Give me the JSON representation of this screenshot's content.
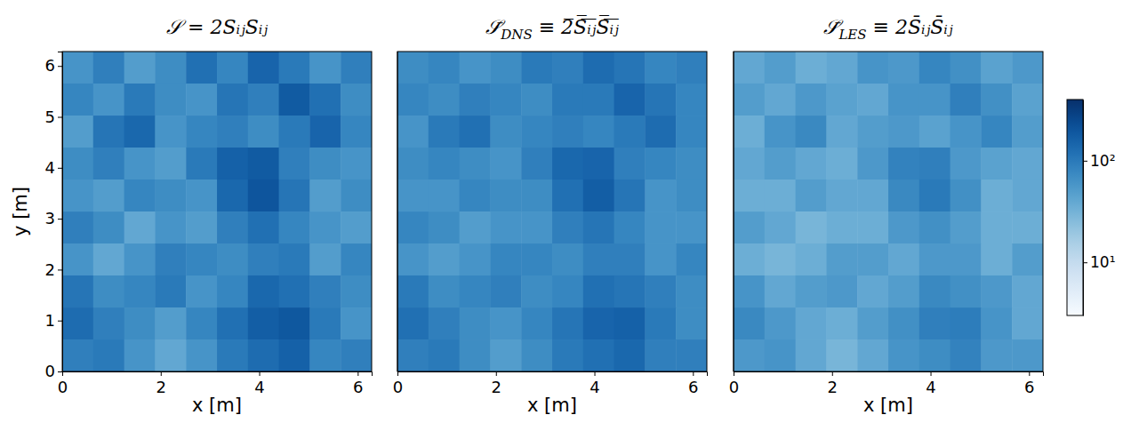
{
  "chart_data": [
    {
      "type": "heatmap",
      "title": "𝒮 = 2SᵢⱼSᵢⱼ",
      "x_label": "x [m]",
      "y_label": "y [m]",
      "xlim": [
        0,
        6.2832
      ],
      "ylim": [
        0,
        6.2832
      ],
      "xticks": [
        0,
        2,
        4,
        6
      ],
      "yticks": [
        0,
        1,
        2,
        3,
        4,
        5,
        6
      ],
      "x": [
        0.314,
        0.942,
        1.571,
        2.199,
        2.827,
        3.456,
        4.084,
        4.712,
        5.341,
        5.969
      ],
      "y": [
        5.969,
        5.341,
        4.712,
        4.084,
        3.456,
        2.827,
        2.199,
        1.571,
        0.942,
        0.314
      ],
      "clim": [
        3,
        400
      ],
      "z": [
        [
          60,
          90,
          50,
          70,
          120,
          80,
          150,
          100,
          60,
          90
        ],
        [
          80,
          60,
          100,
          70,
          60,
          110,
          90,
          180,
          120,
          70
        ],
        [
          50,
          110,
          140,
          60,
          80,
          90,
          70,
          100,
          150,
          80
        ],
        [
          70,
          90,
          60,
          50,
          100,
          160,
          180,
          90,
          70,
          60
        ],
        [
          60,
          50,
          80,
          70,
          60,
          140,
          200,
          110,
          50,
          70
        ],
        [
          90,
          70,
          40,
          60,
          50,
          90,
          120,
          80,
          60,
          50
        ],
        [
          60,
          40,
          60,
          90,
          80,
          70,
          90,
          100,
          50,
          80
        ],
        [
          110,
          70,
          80,
          100,
          60,
          80,
          140,
          120,
          90,
          70
        ],
        [
          130,
          90,
          70,
          50,
          80,
          120,
          170,
          190,
          100,
          60
        ],
        [
          90,
          100,
          60,
          40,
          60,
          100,
          130,
          160,
          80,
          90
        ]
      ]
    },
    {
      "type": "heatmap",
      "title": "𝒮̄DNS ≡ 2̅S̅ᵢ̅ⱼ̅S̅ᵢ̅ⱼ̅",
      "x_label": "x [m]",
      "tick_labels": "x",
      "xlim": [
        0,
        6.2832
      ],
      "ylim": [
        0,
        6.2832
      ],
      "xticks": [
        0,
        2,
        4,
        6
      ],
      "x": [
        0.314,
        0.942,
        1.571,
        2.199,
        2.827,
        3.456,
        4.084,
        4.712,
        5.341,
        5.969
      ],
      "y": [
        5.969,
        5.341,
        4.712,
        4.084,
        3.456,
        2.827,
        2.199,
        1.571,
        0.942,
        0.314
      ],
      "clim": [
        3,
        400
      ],
      "z": [
        [
          70,
          80,
          60,
          70,
          100,
          90,
          130,
          110,
          80,
          90
        ],
        [
          80,
          70,
          90,
          80,
          70,
          100,
          100,
          150,
          110,
          80
        ],
        [
          60,
          100,
          120,
          70,
          80,
          90,
          80,
          100,
          130,
          80
        ],
        [
          70,
          80,
          70,
          60,
          90,
          140,
          150,
          90,
          80,
          70
        ],
        [
          60,
          60,
          80,
          70,
          70,
          120,
          170,
          110,
          60,
          70
        ],
        [
          80,
          70,
          50,
          60,
          60,
          90,
          110,
          80,
          60,
          60
        ],
        [
          60,
          50,
          60,
          80,
          80,
          70,
          90,
          90,
          60,
          80
        ],
        [
          100,
          70,
          80,
          90,
          70,
          80,
          120,
          110,
          90,
          70
        ],
        [
          120,
          90,
          70,
          60,
          80,
          110,
          150,
          160,
          100,
          70
        ],
        [
          90,
          100,
          70,
          50,
          70,
          100,
          120,
          140,
          90,
          90
        ]
      ]
    },
    {
      "type": "heatmap",
      "title": "𝒮̄LES ≡ 2S̄ᵢⱼS̄ᵢⱼ",
      "x_label": "x [m]",
      "tick_labels": "x",
      "xlim": [
        0,
        6.2832
      ],
      "ylim": [
        0,
        6.2832
      ],
      "xticks": [
        0,
        2,
        4,
        6
      ],
      "x": [
        0.314,
        0.942,
        1.571,
        2.199,
        2.827,
        3.456,
        4.084,
        4.712,
        5.341,
        5.969
      ],
      "y": [
        5.969,
        5.341,
        4.712,
        4.084,
        3.456,
        2.827,
        2.199,
        1.571,
        0.942,
        0.314
      ],
      "clim": [
        3,
        400
      ],
      "cticks": [
        {
          "value": 10,
          "label": "10¹"
        },
        {
          "value": 100,
          "label": "10²"
        }
      ],
      "z": [
        [
          40,
          50,
          35,
          40,
          60,
          55,
          80,
          65,
          45,
          55
        ],
        [
          50,
          40,
          55,
          45,
          40,
          60,
          60,
          90,
          65,
          45
        ],
        [
          35,
          60,
          75,
          40,
          50,
          55,
          45,
          60,
          80,
          50
        ],
        [
          40,
          50,
          40,
          35,
          55,
          85,
          90,
          55,
          45,
          40
        ],
        [
          35,
          35,
          50,
          40,
          40,
          75,
          100,
          65,
          35,
          40
        ],
        [
          50,
          40,
          30,
          35,
          35,
          55,
          65,
          50,
          35,
          35
        ],
        [
          35,
          30,
          35,
          50,
          50,
          40,
          55,
          55,
          35,
          50
        ],
        [
          60,
          40,
          50,
          55,
          40,
          50,
          75,
          65,
          55,
          40
        ],
        [
          75,
          55,
          40,
          35,
          50,
          65,
          90,
          95,
          60,
          40
        ],
        [
          55,
          60,
          40,
          30,
          40,
          60,
          70,
          85,
          55,
          55
        ]
      ]
    }
  ]
}
